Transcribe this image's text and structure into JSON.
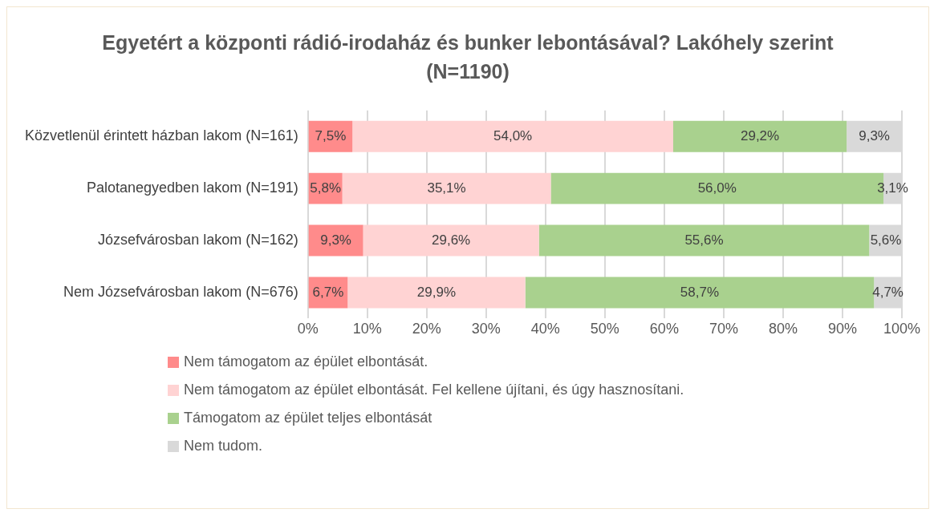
{
  "chart_data": {
    "type": "bar",
    "title": "Egyetért a központi rádió-irodaház és bunker lebontásával? Lakóhely szerint (N=1190)",
    "orientation": "horizontal",
    "stacked": true,
    "categories": [
      "Közvetlenül érintett házban lakom (N=161)",
      "Palotanegyedben lakom (N=191)",
      "Józsefvárosban lakom (N=162)",
      "Nem Józsefvárosban lakom (N=676)"
    ],
    "series": [
      {
        "name": "Nem támogatom az épület elbontását.",
        "color": "#ff8b8b",
        "values": [
          7.5,
          5.8,
          9.3,
          6.7
        ],
        "value_labels": [
          "7,5%",
          "5,8%",
          "9,3%",
          "6,7%"
        ]
      },
      {
        "name": "Nem támogatom az épület elbontását. Fel kellene újítani, és úgy hasznosítani.",
        "color": "#ffd3d3",
        "values": [
          54.0,
          35.1,
          29.6,
          29.9
        ],
        "value_labels": [
          "54,0%",
          "35,1%",
          "29,6%",
          "29,9%"
        ]
      },
      {
        "name": "Támogatom az épület teljes elbontását",
        "color": "#a9d18e",
        "values": [
          29.2,
          56.0,
          55.6,
          58.7
        ],
        "value_labels": [
          "29,2%",
          "56,0%",
          "55,6%",
          "58,7%"
        ]
      },
      {
        "name": "Nem tudom.",
        "color": "#d9d9d9",
        "values": [
          9.3,
          3.1,
          5.6,
          4.7
        ],
        "value_labels": [
          "9,3%",
          "3,1%",
          "5,6%",
          "4,7%"
        ]
      }
    ],
    "xlim": [
      0,
      100
    ],
    "xticks": [
      {
        "value": 0,
        "label": "0%"
      },
      {
        "value": 10,
        "label": "10%"
      },
      {
        "value": 20,
        "label": "20%"
      },
      {
        "value": 30,
        "label": "30%"
      },
      {
        "value": 40,
        "label": "40%"
      },
      {
        "value": 50,
        "label": "50%"
      },
      {
        "value": 60,
        "label": "60%"
      },
      {
        "value": 70,
        "label": "70%"
      },
      {
        "value": 80,
        "label": "80%"
      },
      {
        "value": 90,
        "label": "90%"
      },
      {
        "value": 100,
        "label": "100%"
      }
    ],
    "grid": "x",
    "legend": "bottom left"
  }
}
